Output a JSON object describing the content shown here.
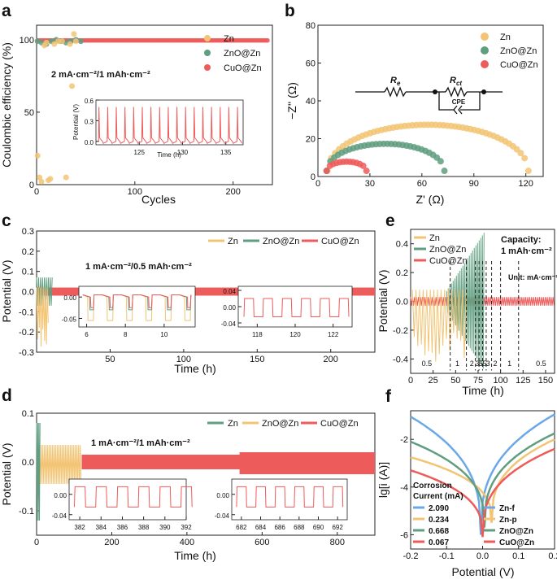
{
  "panels": {
    "a": {
      "label": "a"
    },
    "b": {
      "label": "b"
    },
    "c": {
      "label": "c"
    },
    "d": {
      "label": "d"
    },
    "e": {
      "label": "e"
    },
    "f": {
      "label": "f"
    }
  },
  "colors": {
    "zn": "#F2C474",
    "zno": "#5F9E80",
    "cuo": "#EE5B5B",
    "znf": "#6AA8E8"
  },
  "chart_data": [
    {
      "id": "a",
      "type": "scatter",
      "title": "",
      "xlabel": "Cycles",
      "ylabel": "Coulombic efficiency (%)",
      "xlim": [
        0,
        240
      ],
      "ylim": [
        0,
        110
      ],
      "xticks": [
        "0",
        "100",
        "200"
      ],
      "yticks": [
        "0",
        "50",
        "100"
      ],
      "annotation": "2 mA·cm⁻²/1 mAh·cm⁻²",
      "series": [
        {
          "name": "Zn",
          "color": "#F2C474",
          "points": [
            [
              1,
              20
            ],
            [
              3,
              5
            ],
            [
              5,
              2
            ],
            [
              8,
              96
            ],
            [
              10,
              98
            ],
            [
              12,
              3
            ],
            [
              14,
              4
            ],
            [
              18,
              97
            ],
            [
              22,
              99
            ],
            [
              26,
              99
            ],
            [
              30,
              5
            ],
            [
              34,
              97
            ],
            [
              36,
              68
            ],
            [
              38,
              104
            ],
            [
              40,
              99
            ]
          ]
        },
        {
          "name": "ZnO@Zn",
          "color": "#5F9E80",
          "points": [
            [
              1,
              99
            ],
            [
              5,
              98
            ],
            [
              10,
              97
            ],
            [
              15,
              99
            ],
            [
              20,
              100
            ],
            [
              25,
              99
            ],
            [
              30,
              98
            ],
            [
              35,
              99
            ],
            [
              40,
              100
            ],
            [
              45,
              99
            ]
          ]
        },
        {
          "name": "CuO@Zn",
          "color": "#EE5B5B",
          "x_range": [
            1,
            235
          ],
          "value": 99.5
        }
      ],
      "inset": {
        "xlabel": "Time (h)",
        "ylabel": "Potential (V)",
        "xticks": [
          "125",
          "130",
          "135"
        ],
        "yticks": [
          "0.0",
          "0.3",
          "0.6"
        ],
        "xlim": [
          120,
          137
        ],
        "ylim": [
          -0.05,
          0.6
        ]
      }
    },
    {
      "id": "b",
      "type": "line",
      "xlabel": "Z' (Ω)",
      "ylabel": "−Z'' (Ω)",
      "xlim": [
        0,
        130
      ],
      "ylim": [
        0,
        80
      ],
      "xticks": [
        "0",
        "30",
        "60",
        "90",
        "120"
      ],
      "yticks": [
        "0",
        "20",
        "40",
        "60",
        "80"
      ],
      "series": [
        {
          "name": "Zn",
          "color": "#F2C474",
          "center": 63.5,
          "radius": 58,
          "x_start": 5.5,
          "x_end": 121.5
        },
        {
          "name": "ZnO@Zn",
          "color": "#5F9E80",
          "center": 39,
          "radius": 34,
          "x_start": 5,
          "x_end": 73
        },
        {
          "name": "CuO@Zn",
          "color": "#EE5B5B",
          "center": 16.5,
          "radius": 11.5,
          "x_start": 5,
          "x_end": 28
        }
      ],
      "circuit": {
        "r1": "R",
        "r1_sub": "e",
        "r2": "R",
        "r2_sub": "ct",
        "cpe": "CPE"
      }
    },
    {
      "id": "c",
      "type": "line",
      "xlabel": "Time (h)",
      "ylabel": "Potential (V)",
      "xlim": [
        0,
        230
      ],
      "ylim": [
        -0.3,
        0.3
      ],
      "xticks": [
        "50",
        "100",
        "150",
        "200"
      ],
      "yticks": [
        "-0.3",
        "-0.2",
        "-0.1",
        "0.0",
        "0.1",
        "0.2",
        "0.3"
      ],
      "annotation": "1 mA·cm⁻²/0.5 mAh·cm⁻²",
      "series": [
        {
          "name": "Zn",
          "color": "#F2C474",
          "x_end": 8,
          "amplitude": 0.28
        },
        {
          "name": "ZnO@Zn",
          "color": "#5F9E80",
          "x_end": 11,
          "amplitude": 0.07
        },
        {
          "name": "CuO@Zn",
          "color": "#EE5B5B",
          "x_end": 230,
          "amplitude": 0.02
        }
      ],
      "inset1": {
        "xticks": [
          "6",
          "8",
          "10"
        ],
        "yticks": [
          "0.00",
          "-0.05"
        ],
        "xlim": [
          5.6,
          11.6
        ]
      },
      "inset2": {
        "xticks": [
          "118",
          "120",
          "122"
        ],
        "yticks": [
          "0.04",
          "0.00",
          "-0.04"
        ],
        "xlim": [
          117,
          123
        ]
      }
    },
    {
      "id": "d",
      "type": "line",
      "xlabel": "Time (h)",
      "ylabel": "Potential (V)",
      "xlim": [
        0,
        900
      ],
      "ylim": [
        -0.15,
        0.1
      ],
      "xticks": [
        "0",
        "200",
        "400",
        "600",
        "800"
      ],
      "yticks": [
        "-0.1",
        "0.0",
        "0.1"
      ],
      "annotation": "1 mA·cm⁻²/1 mAh·cm⁻²",
      "series": [
        {
          "name": "Zn",
          "color": "#5F9E80",
          "x_end": 10,
          "amplitude": 0.1
        },
        {
          "name": "ZnO@Zn",
          "color": "#F2C474",
          "x_end": 120,
          "amplitude": 0.04
        },
        {
          "name": "CuO@Zn",
          "color": "#EE5B5B",
          "x_end": 900,
          "amplitude": 0.015
        }
      ],
      "inset1": {
        "xticks": [
          "382",
          "384",
          "386",
          "388",
          "390",
          "392"
        ],
        "yticks": [
          "0.00",
          "-0.04"
        ],
        "xlim": [
          381,
          392
        ]
      },
      "inset2": {
        "xticks": [
          "682",
          "684",
          "686",
          "688",
          "690",
          "692"
        ],
        "yticks": [
          "0.00",
          "-0.04"
        ],
        "xlim": [
          681,
          693
        ]
      }
    },
    {
      "id": "e",
      "type": "line",
      "xlabel": "Time (h)",
      "ylabel": "Potential (V)",
      "xlim": [
        0,
        160
      ],
      "ylim": [
        -0.5,
        0.5
      ],
      "xticks": [
        "0",
        "25",
        "50",
        "75",
        "100",
        "125",
        "150"
      ],
      "yticks": [
        "-0.4",
        "-0.2",
        "0.0",
        "0.2",
        "0.4"
      ],
      "annotation": "Capacity:",
      "annotation2": "1 mAh·cm⁻²",
      "unit_label": "Unit: mA·cm⁻²",
      "rate_labels": [
        {
          "x": 18,
          "text": "0.5"
        },
        {
          "x": 52,
          "text": "1"
        },
        {
          "x": 68,
          "text": "2"
        },
        {
          "x": 74,
          "text": "3"
        },
        {
          "x": 78,
          "text": "5"
        },
        {
          "x": 82,
          "text": "5"
        },
        {
          "x": 86,
          "text": "3"
        },
        {
          "x": 94,
          "text": "2"
        },
        {
          "x": 110,
          "text": "1"
        },
        {
          "x": 145,
          "text": "0.5"
        }
      ],
      "dividers": [
        44,
        62,
        72,
        76,
        80,
        84,
        90,
        100,
        120
      ],
      "series": [
        {
          "name": "Zn",
          "color": "#F2C474",
          "x_end": 62,
          "amplitude": 0.42
        },
        {
          "name": "ZnO@Zn",
          "color": "#5F9E80",
          "x_end": 82,
          "amplitude": 0.48
        },
        {
          "name": "CuO@Zn",
          "color": "#EE5B5B",
          "x_end": 160,
          "amplitude": 0.03
        }
      ]
    },
    {
      "id": "f",
      "type": "line",
      "xlabel": "Potential (V)",
      "ylabel": "lg[i (A)]",
      "xlim": [
        -0.2,
        0.2
      ],
      "ylim": [
        -6.6,
        -0.8
      ],
      "xticks": [
        "-0.2",
        "-0.1",
        "0.0",
        "0.1",
        "0.2"
      ],
      "yticks": [
        "-2",
        "-4",
        "-6"
      ],
      "corrosion_title": "Corrosion",
      "corrosion_title2": "Current (mA)",
      "series": [
        {
          "name": "Zn-f",
          "color": "#6AA8E8",
          "current": "2.090",
          "ecorr": -0.005,
          "min": -6.0,
          "left_end": -1.05,
          "right_end": -0.95
        },
        {
          "name": "Zn-p",
          "color": "#F2C474",
          "current": "0.234",
          "ecorr": 0.025,
          "min": -5.5,
          "left_end": -2.75,
          "right_end": -2.0
        },
        {
          "name": "ZnO@Zn",
          "color": "#5F9E80",
          "current": "0.668",
          "ecorr": 0.005,
          "min": -5.7,
          "left_end": -2.1,
          "right_end": -1.75
        },
        {
          "name": "CuO@Zn",
          "color": "#EE5B5B",
          "current": "0.067",
          "ecorr": 0.0,
          "min": -6.1,
          "left_end": -3.3,
          "right_end": -2.4
        }
      ]
    }
  ]
}
